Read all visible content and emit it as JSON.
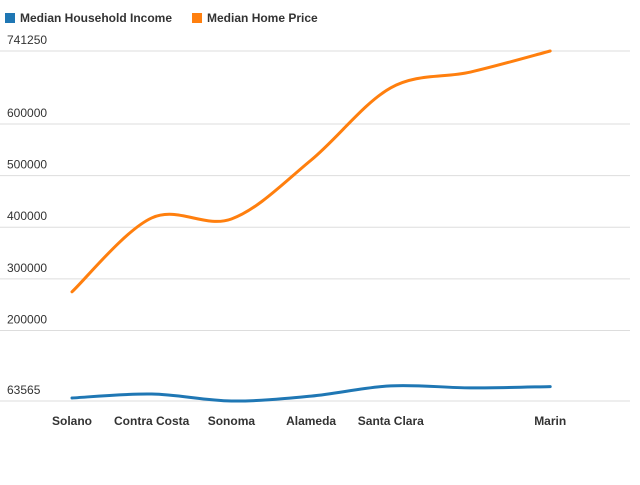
{
  "chart_data": {
    "type": "line",
    "categories": [
      "Solano",
      "Contra Costa",
      "Sonoma",
      "Alameda",
      "Santa Clara",
      null,
      "Marin"
    ],
    "series": [
      {
        "name": "Median Household Income",
        "color": "#1f77b4",
        "values": [
          69400,
          77100,
          63565,
          73000,
          92900,
          89000,
          91500
        ]
      },
      {
        "name": "Median Home Price",
        "color": "#ff7f0e",
        "values": [
          275000,
          418000,
          416000,
          530000,
          670000,
          700500,
          741250
        ]
      }
    ],
    "ylim": [
      63565,
      741250
    ],
    "yticks": [
      63565,
      200000,
      300000,
      400000,
      500000,
      600000,
      741250
    ],
    "grid": true,
    "legend": "top-left"
  }
}
